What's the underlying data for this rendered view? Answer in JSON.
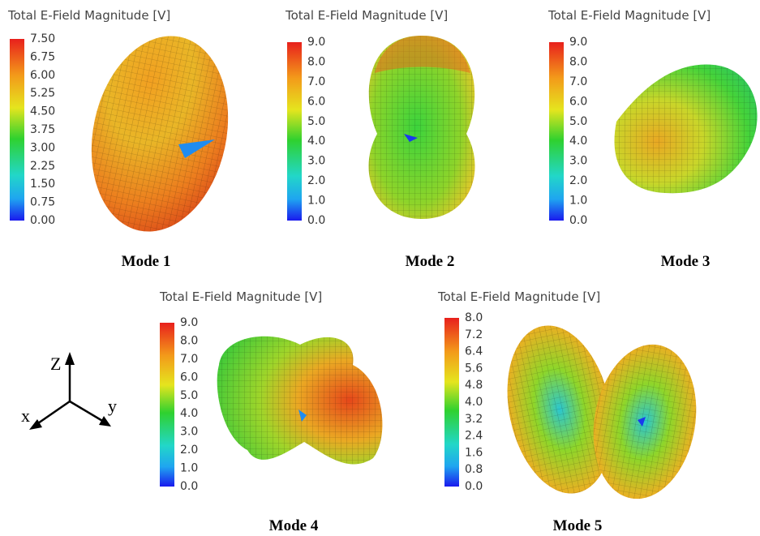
{
  "panels": [
    {
      "title": "Total E-Field Magnitude [V]",
      "ticks": [
        "7.50",
        "6.75",
        "6.00",
        "5.25",
        "4.50",
        "3.75",
        "3.00",
        "2.25",
        "1.50",
        "0.75",
        "0.00"
      ],
      "caption": "Mode 1"
    },
    {
      "title": "Total E-Field Magnitude [V]",
      "ticks": [
        "9.0",
        "8.0",
        "7.0",
        "6.0",
        "5.0",
        "4.0",
        "3.0",
        "2.0",
        "1.0",
        "0.0"
      ],
      "caption": "Mode 2"
    },
    {
      "title": "Total E-Field Magnitude [V]",
      "ticks": [
        "9.0",
        "8.0",
        "7.0",
        "6.0",
        "5.0",
        "4.0",
        "3.0",
        "2.0",
        "1.0",
        "0.0"
      ],
      "caption": "Mode 3"
    },
    {
      "title": "Total E-Field Magnitude [V]",
      "ticks": [
        "9.0",
        "8.0",
        "7.0",
        "6.0",
        "5.0",
        "4.0",
        "3.0",
        "2.0",
        "1.0",
        "0.0"
      ],
      "caption": "Mode 4"
    },
    {
      "title": "Total E-Field Magnitude [V]",
      "ticks": [
        "8.0",
        "7.2",
        "6.4",
        "5.6",
        "4.8",
        "4.0",
        "3.2",
        "2.4",
        "1.6",
        "0.8",
        "0.0"
      ],
      "caption": "Mode 5"
    }
  ],
  "axes": {
    "z": "Z",
    "x": "x",
    "y": "y"
  }
}
